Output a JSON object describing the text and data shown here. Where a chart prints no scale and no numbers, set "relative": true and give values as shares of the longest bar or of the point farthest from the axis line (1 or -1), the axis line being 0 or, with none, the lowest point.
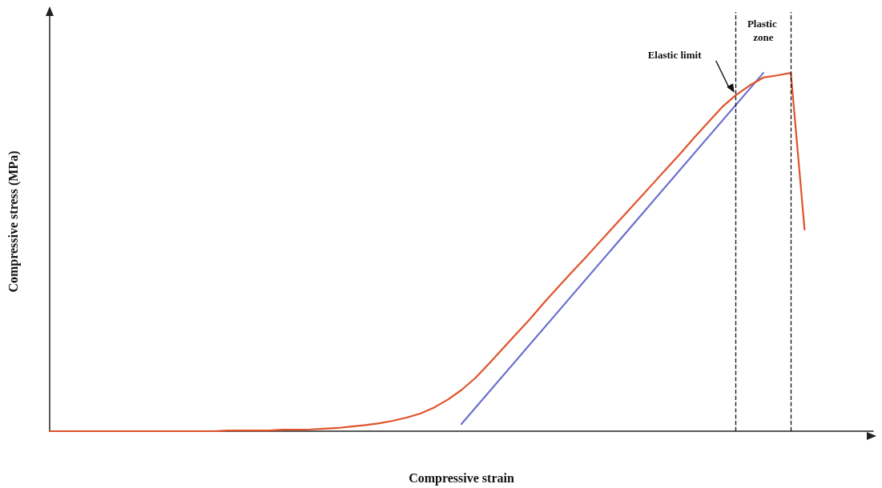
{
  "chart_data": {
    "type": "line",
    "relative": true,
    "xlabel": "Compressive strain",
    "ylabel": "Compressive stress (MPa)",
    "categories": [
      null,
      null,
      null,
      null,
      null,
      null,
      null,
      null,
      null,
      null,
      null,
      null,
      null,
      null,
      null,
      null,
      null,
      null,
      null,
      null,
      null,
      null,
      null,
      null,
      null,
      null,
      null,
      null,
      null,
      null,
      null,
      null,
      null,
      null,
      null,
      null,
      null,
      null,
      null,
      null,
      null,
      null,
      null,
      null,
      null,
      null,
      null,
      null,
      null,
      null,
      null,
      null,
      null,
      null,
      null,
      null,
      null,
      null,
      null,
      null,
      null
    ],
    "series": [
      {
        "color": "#e0522c",
        "values": [
          0,
          0,
          0,
          0,
          0,
          0,
          0,
          0,
          0,
          0,
          0,
          0,
          0,
          0.002,
          0.002,
          0.002,
          0.002,
          0.004,
          0.004,
          0.005,
          0.007,
          0.009,
          0.013,
          0.017,
          0.022,
          0.029,
          0.038,
          0.049,
          0.066,
          0.088,
          0.115,
          0.148,
          0.188,
          0.23,
          0.272,
          0.313,
          0.358,
          0.4,
          0.442,
          0.483,
          0.525,
          0.567,
          0.609,
          0.651,
          0.693,
          0.735,
          0.777,
          0.821,
          0.863,
          0.905,
          0.938,
          0.965,
          0.987,
          0.993,
          1,
          0.563,
          null,
          null,
          null,
          null,
          null
        ]
      },
      {
        "color": "#6b6fd0",
        "values": [
          null,
          null,
          null,
          null,
          null,
          null,
          null,
          null,
          null,
          null,
          null,
          null,
          null,
          null,
          null,
          null,
          null,
          null,
          null,
          null,
          null,
          null,
          null,
          null,
          null,
          null,
          null,
          null,
          null,
          null,
          0.02,
          null,
          null,
          null,
          null,
          null,
          null,
          null,
          null,
          null,
          null,
          null,
          null,
          null,
          null,
          null,
          null,
          null,
          null,
          null,
          null,
          null,
          1,
          null,
          null,
          null,
          null,
          null,
          null,
          null,
          null
        ]
      }
    ],
    "annotations": [
      "Elastic limit",
      "Plastic zone"
    ],
    "grid": false,
    "marker": "none",
    "line_style": "solid"
  }
}
